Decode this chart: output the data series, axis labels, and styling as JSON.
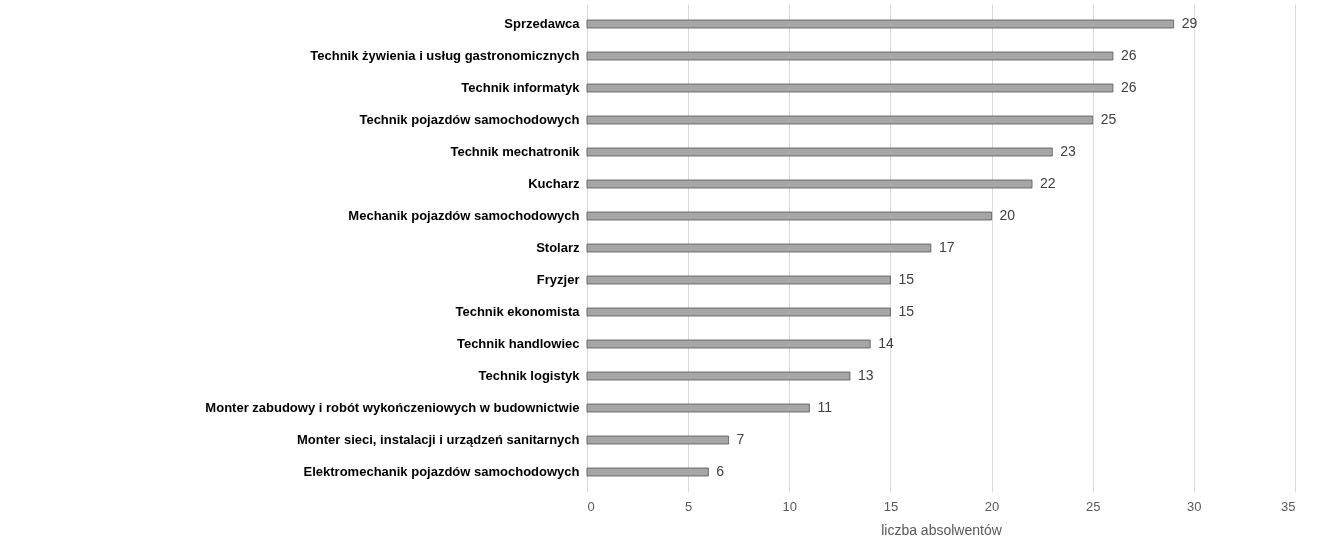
{
  "chart_data": {
    "type": "bar",
    "orientation": "horizontal",
    "xlabel": "liczba absolwentów",
    "categories": [
      "Sprzedawca",
      "Technik żywienia i usług gastronomicznych",
      "Technik informatyk",
      "Technik pojazdów samochodowych",
      "Technik mechatronik",
      "Kucharz",
      "Mechanik pojazdów samochodowych",
      "Stolarz",
      "Fryzjer",
      "Technik ekonomista",
      "Technik handlowiec",
      "Technik logistyk",
      "Monter zabudowy i robót wykończeniowych w budownictwie",
      "Monter sieci, instalacji i urządzeń sanitarnych",
      "Elektromechanik pojazdów samochodowych"
    ],
    "values": [
      29,
      26,
      26,
      25,
      23,
      22,
      20,
      17,
      15,
      15,
      14,
      13,
      11,
      7,
      6
    ],
    "color": "#a6a6a6",
    "xlim": [
      0,
      35
    ],
    "xticks": [
      0,
      5,
      10,
      15,
      20,
      25,
      30,
      35
    ],
    "grid": "x",
    "data_labels": true
  }
}
